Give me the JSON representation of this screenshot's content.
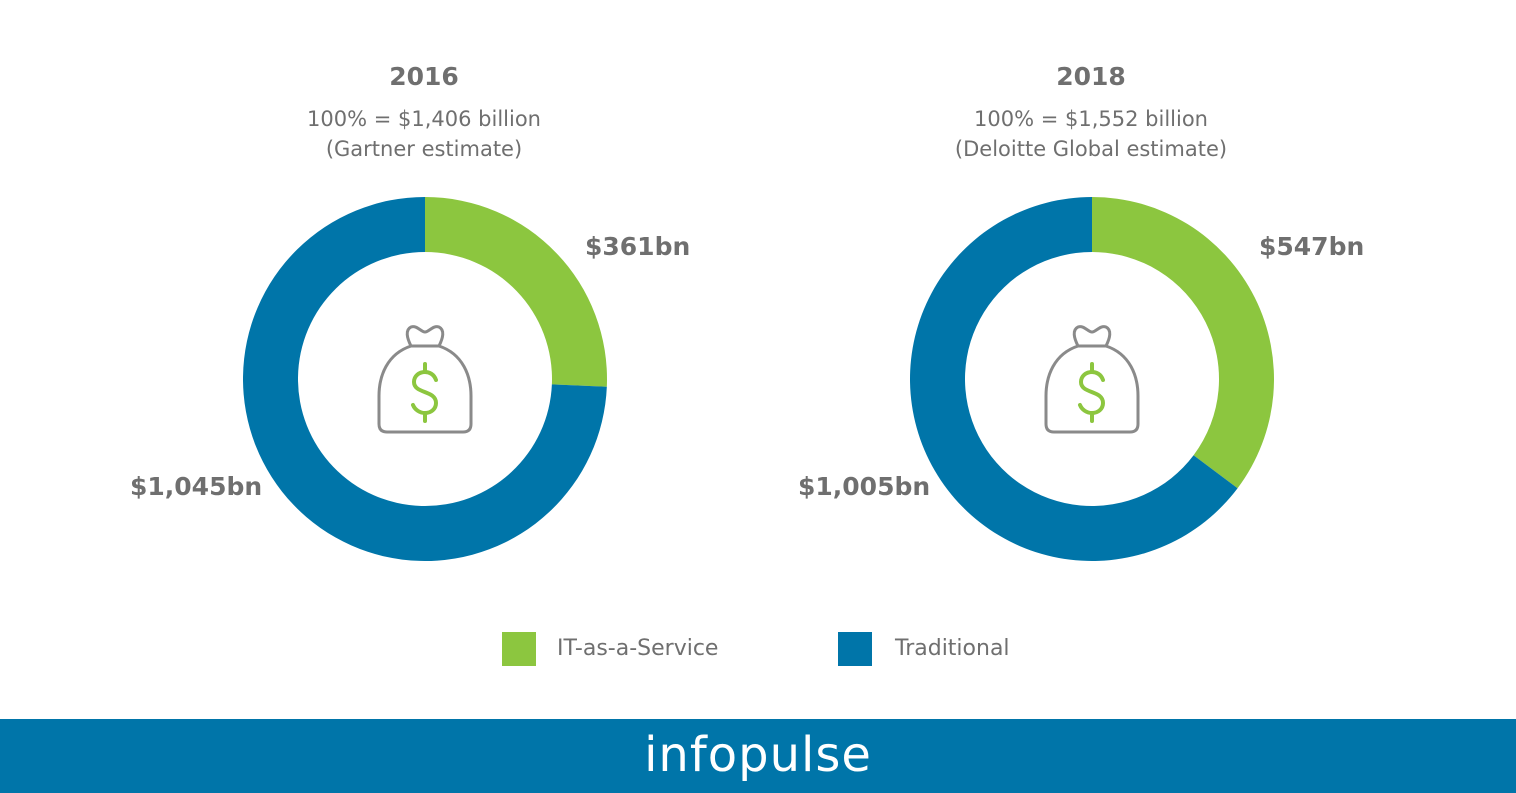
{
  "colors": {
    "it_as_a_service": "#8cc63f",
    "traditional": "#0075a9",
    "text": "#6f6f6f",
    "icon_stroke": "#8a8a8a",
    "footer": "#0075a9"
  },
  "chart_data": [
    {
      "type": "pie",
      "style": "donut",
      "title": "2016",
      "subtitle_line1": "100% = $1,406 billion",
      "subtitle_line2": "(Gartner estimate)",
      "total": 1406,
      "series": [
        {
          "name": "IT-as-a-Service",
          "value": 361,
          "label": "$361bn"
        },
        {
          "name": "Traditional",
          "value": 1045,
          "label": "$1,045bn"
        }
      ],
      "center_icon": "money-bag-icon"
    },
    {
      "type": "pie",
      "style": "donut",
      "title": "2018",
      "subtitle_line1": "100% = $1,552 billion",
      "subtitle_line2": "(Deloitte Global estimate)",
      "total": 1552,
      "series": [
        {
          "name": "IT-as-a-Service",
          "value": 547,
          "label": "$547bn"
        },
        {
          "name": "Traditional",
          "value": 1005,
          "label": "$1,005bn"
        }
      ],
      "center_icon": "money-bag-icon"
    }
  ],
  "legend": {
    "items": [
      {
        "label": "IT-as-a-Service",
        "color_key": "it_as_a_service"
      },
      {
        "label": "Traditional",
        "color_key": "traditional"
      }
    ],
    "placement": "bottom"
  },
  "footer": {
    "brand": "infopulse"
  }
}
